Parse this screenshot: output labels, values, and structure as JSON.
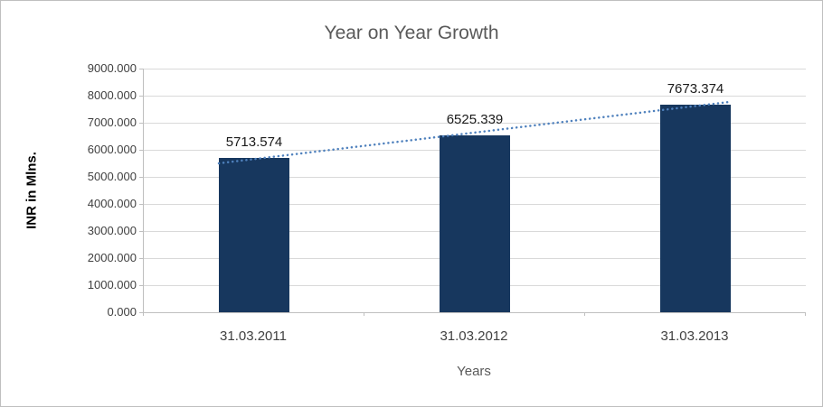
{
  "chart_data": {
    "type": "bar",
    "title": "Year on Year Growth",
    "categories": [
      "31.03.2011",
      "31.03.2012",
      "31.03.2013"
    ],
    "values": [
      5713.574,
      6525.339,
      7673.374
    ],
    "data_labels": [
      "5713.574",
      "6525.339",
      "7673.374"
    ],
    "xlabel": "Years",
    "ylabel": "INR in Mlns.",
    "ylim": [
      0,
      9000
    ],
    "ytick_step": 1000,
    "ytick_labels": [
      "0.000",
      "1000.000",
      "2000.000",
      "3000.000",
      "4000.000",
      "5000.000",
      "6000.000",
      "7000.000",
      "8000.000",
      "9000.000"
    ],
    "grid": true,
    "legend": "none",
    "trendline": {
      "type": "linear",
      "style": "dotted"
    },
    "colors": {
      "bar": "#17375E",
      "trendline": "#4F81BD",
      "gridline": "#D9D9D9",
      "axis": "#BFBFBF",
      "title_text": "#595959",
      "tick_text": "#404040",
      "data_label_text": "#1A1A1A"
    }
  }
}
